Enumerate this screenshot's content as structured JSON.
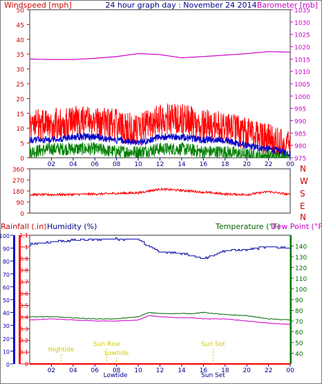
{
  "header": {
    "left_title": "Windspeed [mph]",
    "center_title": "24 hour graph day : November 24 2014",
    "right_title": "Barometer [mb]"
  },
  "colors": {
    "wind_max": "#ff0000",
    "wind_avg": "#0000cc",
    "wind_min": "#008000",
    "barometer": "#cc00cc",
    "direction": "#ff0000",
    "humidity": "#0000aa",
    "temperature": "#006600",
    "dewpoint": "#cc00cc",
    "rainfall": "#ff0000",
    "events": "#cccc00"
  },
  "x_ticks": [
    "02",
    "04",
    "06",
    "08",
    "10",
    "12",
    "14",
    "16",
    "18",
    "20",
    "22",
    "00"
  ],
  "wind_axis": {
    "ticks": [
      "0",
      "5",
      "10",
      "15",
      "20",
      "25",
      "30",
      "35",
      "40",
      "45",
      "50"
    ]
  },
  "baro_axis": {
    "ticks": [
      "975",
      "980",
      "985",
      "990",
      "995",
      "1000",
      "1005",
      "1010",
      "1015",
      "1020",
      "1025",
      "1030",
      "1035"
    ]
  },
  "dir_axis": {
    "ticks": [
      "0",
      "90",
      "180",
      "270",
      "360"
    ]
  },
  "compass": [
    "N",
    "W",
    "S",
    "E",
    "N"
  ],
  "bottom_labels": {
    "rainfall": "Rainfall (.in)",
    "humidity": "Humidity (%)",
    "temperature": "Temperature (°F)",
    "dewpoint": "Dew Point (°F)"
  },
  "humidity_axis": {
    "ticks": [
      "0",
      "10",
      "20",
      "30",
      "40",
      "50",
      "60",
      "70",
      "80",
      "90",
      "100"
    ]
  },
  "rain_axis": {
    "ticks": [
      "0",
      "0.1",
      "0.2",
      "0.3",
      "0.4",
      "0.5",
      "0.6",
      "0.7",
      "0.8",
      "0.9",
      "1",
      "1.1"
    ]
  },
  "temp_axis": {
    "ticks": [
      "40",
      "50",
      "60",
      "70",
      "80",
      "90",
      "100",
      "110",
      "120",
      "130",
      "140"
    ]
  },
  "events": [
    {
      "label": "Hightide",
      "hour": 2.9
    },
    {
      "label": "Sun Rise",
      "hour": 7.1
    },
    {
      "label": "Lowtide",
      "hour": 8.0
    },
    {
      "label": "Sun Set",
      "hour": 16.9
    }
  ],
  "axis_event_labels": [
    {
      "label": "Lowtide",
      "hour": 7.9
    },
    {
      "label": "Sun Set",
      "hour": 16.9
    }
  ],
  "chart_data": [
    {
      "type": "line",
      "title": "24 hour graph day : November 24 2014",
      "ylabel": "Windspeed [mph]",
      "ylim": [
        0,
        50
      ],
      "x": [
        0,
        2,
        4,
        6,
        8,
        10,
        12,
        14,
        16,
        18,
        20,
        22,
        24
      ],
      "series": [
        {
          "values": [
            11,
            11,
            12,
            12,
            11,
            9,
            13,
            13,
            11,
            10,
            8,
            6,
            4
          ]
        },
        {
          "values": [
            6,
            6,
            7,
            7,
            6,
            5,
            7,
            7,
            6,
            6,
            4,
            3,
            1.5
          ]
        },
        {
          "values": [
            2,
            3,
            3,
            3,
            2,
            2,
            3,
            3,
            2,
            2,
            1,
            0.5,
            0
          ]
        }
      ],
      "y2label": "Barometer [mb]",
      "y2lim": [
        975,
        1035
      ],
      "barometer": [
        1015,
        1014.8,
        1014.8,
        1015.3,
        1016,
        1017.2,
        1016.8,
        1015.5,
        1016,
        1016.6,
        1017.2,
        1018,
        1017.8
      ]
    },
    {
      "type": "line",
      "ylim": [
        0,
        360
      ],
      "x": [
        0,
        2,
        4,
        6,
        8,
        10,
        12,
        14,
        16,
        18,
        20,
        22,
        24
      ],
      "series": [
        {
          "values": [
            150,
            150,
            152,
            155,
            160,
            165,
            195,
            185,
            170,
            155,
            150,
            175,
            150
          ]
        }
      ]
    },
    {
      "type": "line",
      "x": [
        0,
        2,
        4,
        6,
        8,
        10,
        11,
        12,
        14,
        15,
        16,
        18,
        20,
        22,
        24
      ],
      "humidity": {
        "name": "Humidity (%)",
        "ylim": [
          0,
          100
        ],
        "values": [
          93,
          95,
          96,
          97,
          97,
          97,
          91,
          87,
          86,
          84,
          82,
          88,
          89,
          91,
          90
        ]
      },
      "temperature": {
        "name": "Temperature (°F)",
        "ylim": [
          30,
          150
        ],
        "values": [
          74,
          74,
          73,
          72,
          72,
          74,
          78,
          77,
          77,
          77,
          78,
          76,
          75,
          72,
          71
        ]
      },
      "dewpoint": {
        "name": "Dew Point (°F)",
        "ylim": [
          30,
          150
        ],
        "values": [
          71,
          72,
          71,
          70,
          70,
          71,
          75,
          74,
          73,
          73,
          72,
          72,
          70,
          68,
          67
        ]
      },
      "rainfall": {
        "name": "Rainfall (.in)",
        "ylim": [
          0,
          1.1
        ],
        "values": [
          0,
          0,
          0,
          0,
          0,
          0,
          0,
          0,
          0,
          0,
          0,
          0,
          0,
          0,
          0
        ]
      }
    }
  ]
}
